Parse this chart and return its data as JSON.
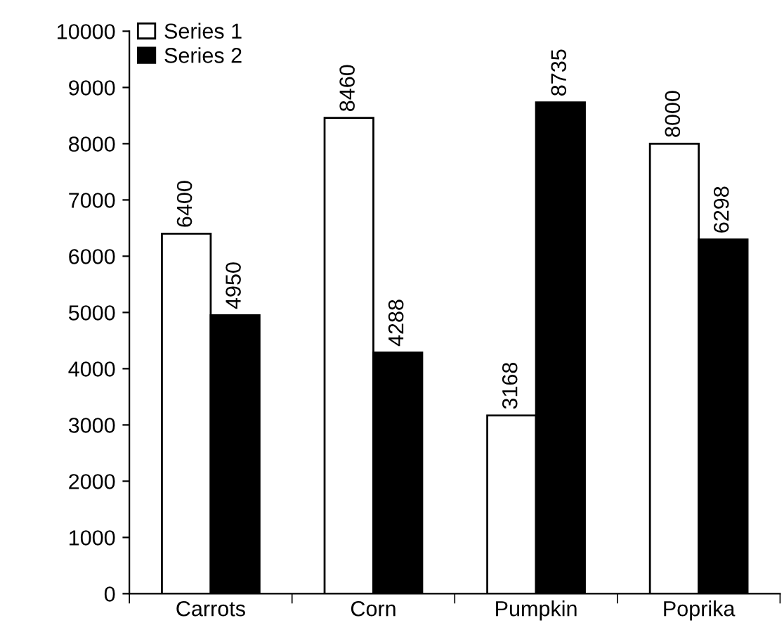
{
  "chart_data": {
    "type": "bar",
    "categories": [
      "Carrots",
      "Corn",
      "Pumpkin",
      "Poprika"
    ],
    "series": [
      {
        "name": "Series 1",
        "color": "#ffffff",
        "values": [
          6400,
          8460,
          3168,
          8000
        ]
      },
      {
        "name": "Series 2",
        "color": "#000000",
        "values": [
          4950,
          4288,
          8735,
          6298
        ]
      }
    ],
    "ylim": [
      0,
      10000
    ],
    "yticks": [
      0,
      1000,
      2000,
      3000,
      4000,
      5000,
      6000,
      7000,
      8000,
      9000,
      10000
    ],
    "grid": false,
    "legend": "top left",
    "data_labels": true
  }
}
